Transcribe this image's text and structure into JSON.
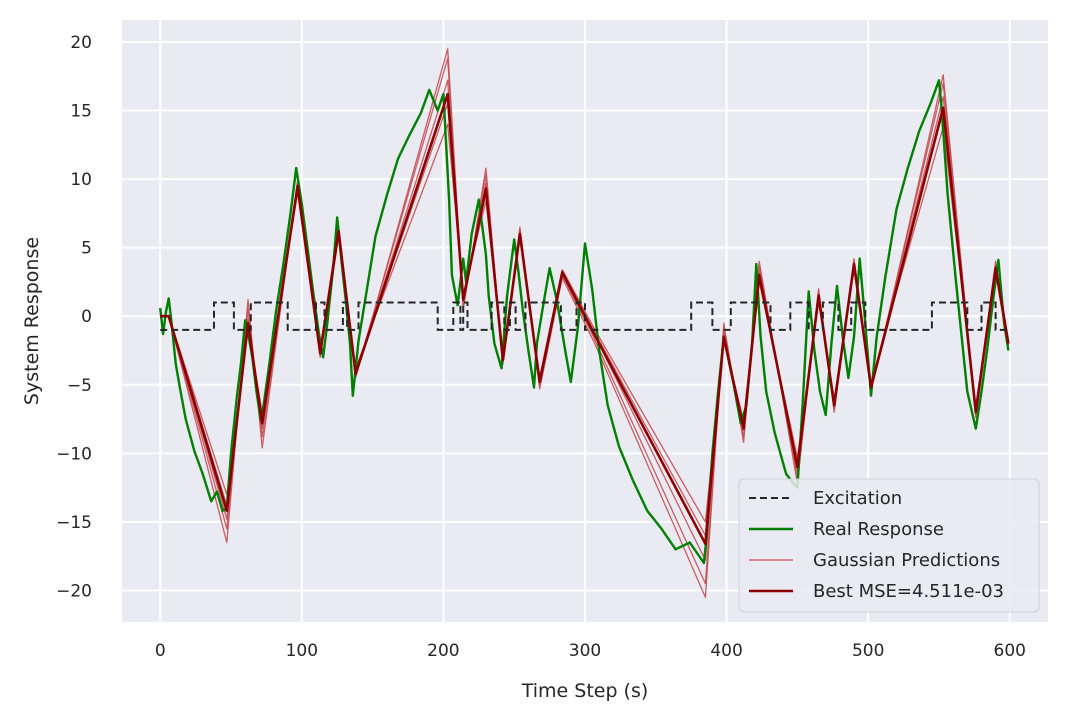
{
  "chart_data": {
    "type": "line",
    "title": "",
    "xlabel": "Time Step (s)",
    "ylabel": "System Response",
    "xlim": [
      -27,
      627
    ],
    "ylim": [
      -22.3,
      21.6
    ],
    "xticks": [
      0,
      100,
      200,
      300,
      400,
      500,
      600
    ],
    "xtick_labels": [
      "0",
      "100",
      "200",
      "300",
      "400",
      "500",
      "600"
    ],
    "yticks": [
      -20,
      -15,
      -10,
      -5,
      0,
      5,
      10,
      15,
      20
    ],
    "ytick_labels": [
      "−20",
      "−15",
      "−10",
      "−5",
      "0",
      "5",
      "10",
      "15",
      "20"
    ],
    "grid": true,
    "legend_position": "lower-right",
    "background_color": "#eaeaf2",
    "grid_color": "#ffffff",
    "series": [
      {
        "name": "Excitation",
        "role": "excitation",
        "color": "#262626",
        "style": "dashed",
        "x": [
          0,
          38,
          38,
          52,
          52,
          64,
          64,
          90,
          90,
          110,
          110,
          116,
          116,
          129,
          129,
          132,
          132,
          140,
          140,
          196,
          196,
          207,
          207,
          212,
          212,
          214,
          214,
          217,
          217,
          234,
          234,
          243,
          243,
          247,
          247,
          251,
          251,
          258,
          258,
          283,
          283,
          294,
          294,
          300,
          300,
          375,
          375,
          390,
          390,
          403,
          403,
          431,
          431,
          445,
          445,
          458,
          458,
          468,
          468,
          479,
          479,
          488,
          488,
          498,
          498,
          545,
          545,
          570,
          570,
          580,
          580,
          590,
          590,
          598
        ],
        "y": [
          -1,
          -1,
          1,
          1,
          -1,
          -1,
          1,
          1,
          -1,
          -1,
          1,
          1,
          -1,
          -1,
          1,
          1,
          -1,
          -1,
          1,
          1,
          -1,
          -1,
          1,
          1,
          -1,
          -1,
          1,
          1,
          -1,
          -1,
          1,
          1,
          -1,
          -1,
          1,
          1,
          -1,
          -1,
          1,
          1,
          -1,
          -1,
          1,
          1,
          -1,
          -1,
          1,
          1,
          -1,
          -1,
          1,
          1,
          -1,
          -1,
          1,
          1,
          -1,
          -1,
          1,
          1,
          -1,
          -1,
          1,
          1,
          -1,
          -1,
          1,
          1,
          -1,
          -1,
          1,
          1,
          -1,
          -1
        ]
      },
      {
        "name": "Real Response",
        "role": "real",
        "color": "#008000",
        "style": "solid",
        "x": [
          0,
          2,
          4,
          6,
          8,
          11,
          14,
          18,
          24,
          30,
          36,
          40,
          44,
          47,
          50,
          54,
          57,
          60,
          62,
          65,
          68,
          71,
          73,
          77,
          82,
          87,
          92,
          96,
          100,
          104,
          108,
          112,
          115,
          118,
          122,
          125,
          128,
          131,
          134,
          136,
          140,
          146,
          152,
          160,
          168,
          176,
          184,
          190,
          196,
          200,
          204,
          206,
          210,
          214,
          216,
          220,
          225,
          230,
          232,
          236,
          241,
          245,
          250,
          253,
          256,
          260,
          264,
          266,
          270,
          275,
          280,
          286,
          290,
          295,
          300,
          305,
          310,
          316,
          324,
          334,
          344,
          354,
          364,
          374,
          384,
          386,
          390,
          394,
          398,
          400,
          405,
          410,
          414,
          418,
          421,
          424,
          428,
          434,
          442,
          448,
          450,
          454,
          458,
          462,
          466,
          470,
          474,
          478,
          482,
          486,
          490,
          494,
          498,
          502,
          506,
          512,
          520,
          528,
          536,
          544,
          550,
          552,
          556,
          562,
          570,
          576,
          580,
          584,
          588,
          592,
          596,
          599
        ],
        "y": [
          0.6,
          -1.3,
          0.3,
          1.3,
          -0.5,
          -3.5,
          -5.3,
          -7.5,
          -9.8,
          -11.5,
          -13.5,
          -12.8,
          -14.2,
          -14.0,
          -10,
          -6,
          -3.5,
          -0.3,
          -1.2,
          -3.0,
          -5.5,
          -7.6,
          -6.5,
          -3.5,
          0.5,
          3.8,
          7.5,
          10.8,
          8.2,
          5.0,
          1.8,
          -1.2,
          -3.0,
          -0.5,
          3.4,
          7.2,
          4.0,
          1.2,
          -2.0,
          -5.8,
          -1.8,
          2.0,
          5.8,
          8.8,
          11.5,
          13.2,
          14.8,
          16.5,
          15.0,
          16.2,
          8.5,
          3.0,
          0.8,
          4.2,
          2.5,
          6.0,
          8.5,
          4.5,
          1.5,
          -2.0,
          -3.8,
          1.5,
          5.6,
          3.2,
          0.5,
          -2.5,
          -5.2,
          -2.0,
          0.5,
          3.5,
          1.2,
          -2.5,
          -4.8,
          -0.8,
          5.3,
          2.0,
          -2.5,
          -6.5,
          -9.5,
          -12.0,
          -14.2,
          -15.5,
          -17.0,
          -16.5,
          -18.0,
          -16.0,
          -10.0,
          -5.5,
          -1.5,
          -2.5,
          -5.0,
          -7.8,
          -6.5,
          -2.0,
          3.8,
          -1.5,
          -5.5,
          -8.5,
          -11.5,
          -12.3,
          -12.5,
          -6.0,
          1.8,
          -2.5,
          -5.5,
          -7.2,
          -2.0,
          2.2,
          -1.5,
          -4.5,
          -1.5,
          4.2,
          -0.5,
          -5.8,
          -1.5,
          2.8,
          7.8,
          10.8,
          13.5,
          15.5,
          17.2,
          15.0,
          9.0,
          2.5,
          -5.5,
          -8.2,
          -5.5,
          -2.5,
          1.0,
          4.1,
          -0.5,
          -2.5
        ]
      },
      {
        "name": "Gaussian Predictions",
        "role": "gaussian",
        "color": "#c44e52",
        "style": "solid",
        "note_count": 5,
        "x": [
          0,
          6,
          47,
          62,
          72,
          97,
          113,
          126,
          138,
          203,
          214,
          230,
          242,
          254,
          268,
          284,
          306,
          385,
          398,
          412,
          423,
          450,
          465,
          476,
          490,
          502,
          553,
          576,
          590,
          599
        ],
        "variants": [
          [
            0,
            0,
            -16.5,
            1.2,
            -9.6,
            9.9,
            -2.4,
            6.6,
            -4.5,
            19.5,
            0.5,
            10.8,
            -3.5,
            6.5,
            -5.3,
            2.8,
            -1.8,
            -20.5,
            -0.5,
            -9.2,
            4.0,
            -12.2,
            2.0,
            -7.0,
            4.2,
            -5.5,
            17.6,
            -7.2,
            4.0,
            -1.8
          ],
          [
            0,
            0,
            -15.5,
            0.5,
            -8.8,
            9.7,
            -2.6,
            6.4,
            -4.3,
            18.8,
            0.8,
            10.3,
            -3.4,
            6.3,
            -5.1,
            3.0,
            -1.5,
            -19.5,
            -1.0,
            -8.8,
            3.6,
            -11.8,
            1.8,
            -6.8,
            4.0,
            -5.3,
            17.0,
            -7.4,
            3.8,
            -2.0
          ],
          [
            0,
            0,
            -14.8,
            -0.2,
            -8.2,
            9.5,
            -2.7,
            6.1,
            -4.2,
            17.2,
            1.0,
            9.7,
            -3.1,
            6.1,
            -4.8,
            3.1,
            -1.2,
            -17.8,
            -1.3,
            -8.3,
            3.2,
            -11.3,
            1.5,
            -6.6,
            3.8,
            -5.2,
            16.0,
            -7.0,
            3.6,
            -2.1
          ],
          [
            0,
            0,
            -13.8,
            -0.6,
            -7.5,
            9.2,
            -2.9,
            6.0,
            -4.0,
            15.5,
            1.4,
            9.0,
            -3.0,
            5.9,
            -4.6,
            3.3,
            -1.0,
            -16.0,
            -1.5,
            -8.0,
            2.8,
            -10.8,
            1.3,
            -6.3,
            3.6,
            -5.0,
            15.0,
            -6.8,
            3.4,
            -2.2
          ],
          [
            0,
            0,
            -13.0,
            -1.0,
            -7.0,
            9.0,
            -3.0,
            5.8,
            -3.8,
            14.0,
            1.6,
            8.4,
            -2.8,
            5.7,
            -4.4,
            3.4,
            -0.8,
            -15.0,
            -1.8,
            -7.6,
            2.5,
            -10.3,
            1.0,
            -6.0,
            3.4,
            -4.8,
            13.8,
            -6.5,
            3.2,
            -2.3
          ]
        ]
      },
      {
        "name": "Best MSE=4.511e-03",
        "role": "best",
        "color": "#8b0000",
        "style": "solid",
        "x": [
          0,
          6,
          47,
          62,
          72,
          97,
          113,
          126,
          138,
          203,
          214,
          230,
          242,
          254,
          268,
          284,
          306,
          385,
          398,
          412,
          423,
          450,
          465,
          476,
          490,
          502,
          553,
          576,
          590,
          599
        ],
        "y": [
          0,
          0,
          -14.2,
          -0.5,
          -7.8,
          9.5,
          -2.7,
          6.2,
          -4.2,
          16.2,
          1.2,
          9.3,
          -3.2,
          6.0,
          -4.8,
          3.2,
          -1.2,
          -16.6,
          -1.5,
          -8.2,
          3.0,
          -11.0,
          1.5,
          -6.5,
          3.8,
          -5.2,
          15.2,
          -7.0,
          3.5,
          -2.0
        ]
      }
    ]
  }
}
